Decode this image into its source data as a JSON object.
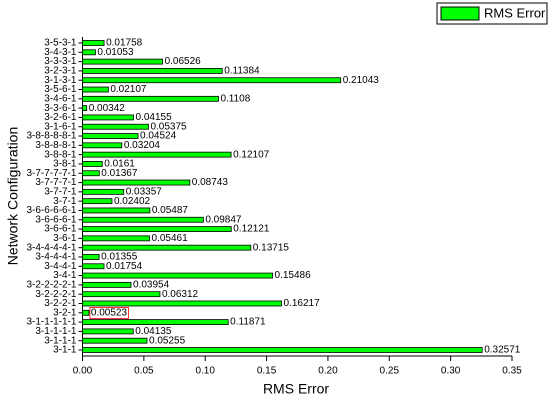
{
  "chart_data": {
    "type": "hbar",
    "x_label": "RMS Error",
    "y_label": "Network Configuration",
    "categories": [
      "3-5-3-1",
      "3-4-3-1",
      "3-3-3-1",
      "3-2-3-1",
      "3-1-3-1",
      "3-5-6-1",
      "3-4-6-1",
      "3-3-6-1",
      "3-2-6-1",
      "3-1-6-1",
      "3-8-8-8-8-1",
      "3-8-8-8-1",
      "3-8-8-1",
      "3-8-1",
      "3-7-7-7-7-1",
      "3-7-7-7-1",
      "3-7-7-1",
      "3-7-1",
      "3-6-6-6-6-1",
      "3-6-6-6-1",
      "3-6-6-1",
      "3-6-1",
      "3-4-4-4-4-1",
      "3-4-4-4-1",
      "3-4-4-1",
      "3-4-1",
      "3-2-2-2-2-1",
      "3-2-2-2-1",
      "3-2-2-1",
      "3-2-1",
      "3-1-1-1-1-1",
      "3-1-1-1-1",
      "3-1-1-1",
      "3-1-1"
    ],
    "series": [
      {
        "name": "RMS Error",
        "color": "#00ff00",
        "values": [
          0.01758,
          0.01053,
          0.06526,
          0.11384,
          0.21043,
          0.02107,
          0.1108,
          0.00342,
          0.04155,
          0.05375,
          0.04524,
          0.03204,
          0.12107,
          0.0161,
          0.01367,
          0.08743,
          0.03357,
          0.02402,
          0.05487,
          0.09847,
          0.12121,
          0.05461,
          0.13715,
          0.01355,
          0.01754,
          0.15486,
          0.03954,
          0.06312,
          0.16217,
          0.00523,
          0.11871,
          0.04135,
          0.05255,
          0.32571
        ]
      }
    ],
    "xlim": [
      0,
      0.35
    ],
    "xticks": [
      {
        "value": 0,
        "label": "0.00"
      },
      {
        "value": 0.05,
        "label": "0.05"
      },
      {
        "value": 0.1,
        "label": "0.10"
      },
      {
        "value": 0.15,
        "label": "0.15"
      },
      {
        "value": 0.2,
        "label": "0.20"
      },
      {
        "value": 0.25,
        "label": "0.25"
      },
      {
        "value": 0.3,
        "label": "0.30"
      },
      {
        "value": 0.35,
        "label": "0.35"
      }
    ],
    "highlight": {
      "index": 29,
      "color": "#ff0000"
    },
    "legend": "upper right"
  }
}
